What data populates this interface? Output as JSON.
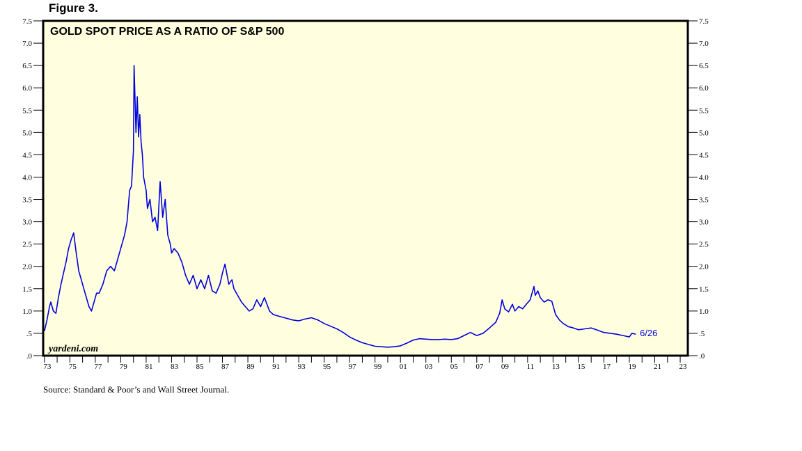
{
  "figure_label": "Figure 3.",
  "source": "Source: Standard & Poor’s and Wall Street Journal.",
  "watermark": "yardeni.com",
  "colors": {
    "line": "#0000dd",
    "plot_bg": "#ffffe0",
    "axis": "#000000"
  },
  "chart_data": {
    "type": "line",
    "title": "GOLD SPOT PRICE AS A RATIO OF S&P 500",
    "xlabel": "",
    "ylabel": "",
    "xlim": [
      1972.9,
      2023.6
    ],
    "ylim": [
      0,
      7.5
    ],
    "y_ticks": [
      0,
      0.5,
      1.0,
      1.5,
      2.0,
      2.5,
      3.0,
      3.5,
      4.0,
      4.5,
      5.0,
      5.5,
      6.0,
      6.5,
      7.0,
      7.5
    ],
    "y_tick_labels": [
      ".0",
      ".5",
      "1.0",
      "1.5",
      "2.0",
      "2.5",
      "3.0",
      "3.5",
      "4.0",
      "4.5",
      "5.0",
      "5.5",
      "6.0",
      "6.5",
      "7.0",
      "7.5"
    ],
    "x_ticks": [
      1973,
      1975,
      1977,
      1979,
      1981,
      1983,
      1985,
      1987,
      1989,
      1991,
      1993,
      1995,
      1997,
      1999,
      2001,
      2003,
      2005,
      2007,
      2009,
      2011,
      2013,
      2015,
      2017,
      2019,
      2021,
      2023
    ],
    "x_tick_labels": [
      "73",
      "75",
      "77",
      "79",
      "81",
      "83",
      "85",
      "87",
      "89",
      "91",
      "93",
      "95",
      "97",
      "99",
      "01",
      "03",
      "05",
      "07",
      "09",
      "11",
      "13",
      "15",
      "17",
      "19",
      "21",
      "23"
    ],
    "grid": false,
    "annotation": {
      "text": "6/26",
      "x": 2019.5,
      "y": 0.48
    },
    "series": [
      {
        "x": [
          1973.0,
          1973.2,
          1973.4,
          1973.5,
          1973.7,
          1973.9,
          1974.1,
          1974.3,
          1974.5,
          1974.7,
          1974.9,
          1975.1,
          1975.3,
          1975.5,
          1975.7,
          1975.9,
          1976.1,
          1976.3,
          1976.5,
          1976.7,
          1976.9,
          1977.1,
          1977.3,
          1977.6,
          1977.9,
          1978.2,
          1978.5,
          1978.8,
          1979.1,
          1979.3,
          1979.5,
          1979.7,
          1979.85,
          1980.0,
          1980.05,
          1980.2,
          1980.3,
          1980.4,
          1980.5,
          1980.6,
          1980.7,
          1980.8,
          1981.0,
          1981.1,
          1981.3,
          1981.5,
          1981.7,
          1981.9,
          1982.1,
          1982.3,
          1982.5,
          1982.7,
          1982.9,
          1983.0,
          1983.2,
          1983.5,
          1983.8,
          1984.1,
          1984.4,
          1984.7,
          1985.0,
          1985.3,
          1985.6,
          1985.9,
          1986.2,
          1986.5,
          1986.8,
          1987.0,
          1987.2,
          1987.5,
          1987.75,
          1987.9,
          1988.2,
          1988.5,
          1988.8,
          1989.1,
          1989.4,
          1989.7,
          1990.0,
          1990.3,
          1990.5,
          1990.7,
          1991.0,
          1991.5,
          1992.0,
          1992.5,
          1993.0,
          1993.5,
          1994.0,
          1994.5,
          1995.0,
          1995.5,
          1996.0,
          1996.5,
          1997.0,
          1997.5,
          1998.0,
          1998.5,
          1999.0,
          1999.5,
          2000.0,
          2000.5,
          2001.0,
          2001.5,
          2002.0,
          2002.5,
          2003.0,
          2003.5,
          2004.0,
          2004.5,
          2005.0,
          2005.5,
          2006.0,
          2006.5,
          2007.0,
          2007.5,
          2008.0,
          2008.5,
          2008.8,
          2009.0,
          2009.2,
          2009.5,
          2009.8,
          2010.0,
          2010.3,
          2010.6,
          2010.9,
          2011.2,
          2011.5,
          2011.6,
          2011.8,
          2012.0,
          2012.3,
          2012.6,
          2012.9,
          2013.2,
          2013.5,
          2013.8,
          2014.2,
          2014.6,
          2015.0,
          2015.5,
          2016.0,
          2016.5,
          2017.0,
          2017.5,
          2018.0,
          2018.5,
          2019.0,
          2019.2,
          2019.5
        ],
        "values": [
          0.55,
          0.8,
          1.1,
          1.2,
          1.0,
          0.95,
          1.3,
          1.6,
          1.85,
          2.1,
          2.4,
          2.6,
          2.75,
          2.3,
          1.9,
          1.7,
          1.5,
          1.3,
          1.1,
          1.0,
          1.2,
          1.4,
          1.4,
          1.6,
          1.9,
          2.0,
          1.9,
          2.2,
          2.5,
          2.7,
          3.0,
          3.7,
          3.8,
          4.6,
          6.5,
          5.0,
          5.8,
          4.9,
          5.4,
          4.8,
          4.5,
          4.0,
          3.7,
          3.3,
          3.5,
          3.0,
          3.1,
          2.8,
          3.9,
          3.1,
          3.5,
          2.7,
          2.5,
          2.3,
          2.4,
          2.3,
          2.1,
          1.8,
          1.6,
          1.8,
          1.5,
          1.7,
          1.5,
          1.8,
          1.45,
          1.4,
          1.6,
          1.85,
          2.05,
          1.6,
          1.7,
          1.5,
          1.35,
          1.2,
          1.1,
          1.0,
          1.05,
          1.25,
          1.1,
          1.3,
          1.15,
          1.0,
          0.92,
          0.88,
          0.84,
          0.8,
          0.78,
          0.82,
          0.85,
          0.8,
          0.72,
          0.66,
          0.6,
          0.52,
          0.42,
          0.35,
          0.29,
          0.25,
          0.21,
          0.2,
          0.19,
          0.2,
          0.22,
          0.28,
          0.35,
          0.38,
          0.37,
          0.36,
          0.36,
          0.37,
          0.36,
          0.38,
          0.45,
          0.52,
          0.45,
          0.5,
          0.62,
          0.75,
          0.95,
          1.25,
          1.05,
          0.98,
          1.15,
          1.0,
          1.1,
          1.05,
          1.15,
          1.25,
          1.55,
          1.35,
          1.45,
          1.3,
          1.2,
          1.25,
          1.22,
          0.92,
          0.8,
          0.72,
          0.65,
          0.62,
          0.58,
          0.6,
          0.62,
          0.57,
          0.52,
          0.5,
          0.48,
          0.45,
          0.42,
          0.5,
          0.48
        ]
      }
    ]
  }
}
